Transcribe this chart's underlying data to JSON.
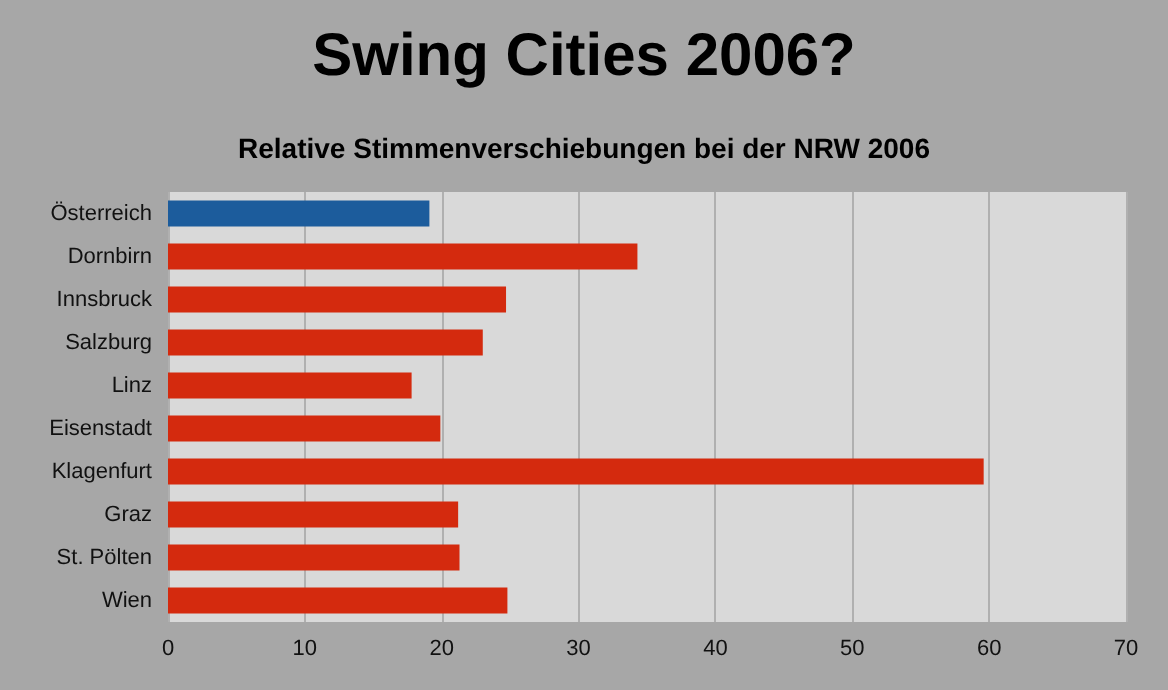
{
  "chart_data": {
    "type": "bar",
    "orientation": "horizontal",
    "title": "Swing Cities 2006?",
    "subtitle": "Relative Stimmenverschiebungen bei der NRW 2006",
    "categories": [
      "Österreich",
      "Dornbirn",
      "Innsbruck",
      "Salzburg",
      "Linz",
      "Eisenstadt",
      "Klagenfurt",
      "Graz",
      "St. Pölten",
      "Wien"
    ],
    "values": [
      19.1,
      34.3,
      24.7,
      23.0,
      17.8,
      19.9,
      59.6,
      21.2,
      21.3,
      24.8
    ],
    "colors": [
      "#1c5c9c",
      "#d42a0e",
      "#d42a0e",
      "#d42a0e",
      "#d42a0e",
      "#d42a0e",
      "#d42a0e",
      "#d42a0e",
      "#d42a0e",
      "#d42a0e"
    ],
    "xlim": [
      0,
      70
    ],
    "xticks": [
      0,
      10,
      20,
      30,
      40,
      50,
      60,
      70
    ],
    "grid": "x"
  }
}
